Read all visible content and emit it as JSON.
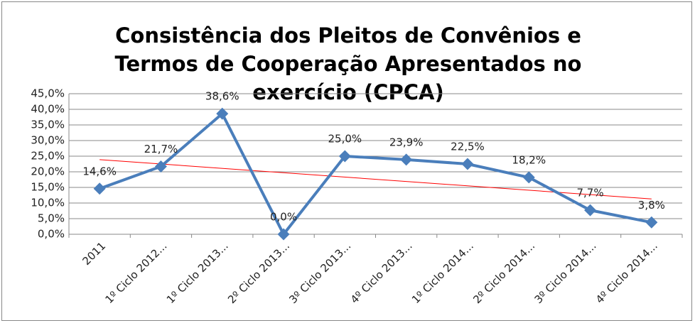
{
  "chart_data": {
    "type": "line",
    "title": "Consistência dos Pleitos de Convênios e Termos de Cooperação Apresentados no exercício (CPCA)",
    "categories": [
      "2011",
      "1º Ciclo 2012...",
      "1º  Ciclo 2013...",
      "2º Ciclo 2013...",
      "3º Ciclo 2013...",
      "4º Ciclo 2013...",
      "1º Ciclo 2014...",
      "2º Ciclo 2014...",
      "3º Ciclo 2014...",
      "4º Ciclo 2014..."
    ],
    "values": [
      14.6,
      21.7,
      38.6,
      0,
      25,
      23.9,
      22.5,
      18.2,
      7.7,
      3.8
    ],
    "value_labels": [
      "14,6%",
      "21,7%",
      "38,6%",
      "0,0%",
      "25,0%",
      "23,9%",
      "22,5%",
      "18,2%",
      "7,7%",
      "3,8%"
    ],
    "color": "#4a7ebb",
    "trendline": {
      "type": "linear",
      "color": "#ff0000"
    },
    "ylim": [
      0,
      45
    ],
    "yticks": [
      {
        "value": 0,
        "label": "0,0%"
      },
      {
        "value": 5,
        "label": "5,0%"
      },
      {
        "value": 10,
        "label": "10,0%"
      },
      {
        "value": 15,
        "label": "15,0%"
      },
      {
        "value": 20,
        "label": "20,0%"
      },
      {
        "value": 25,
        "label": "25,0%"
      },
      {
        "value": 30,
        "label": "30,0%"
      },
      {
        "value": 35,
        "label": "35,0%"
      },
      {
        "value": 40,
        "label": "40,0%"
      },
      {
        "value": 45,
        "label": "45,0%"
      }
    ],
    "grid": true
  }
}
